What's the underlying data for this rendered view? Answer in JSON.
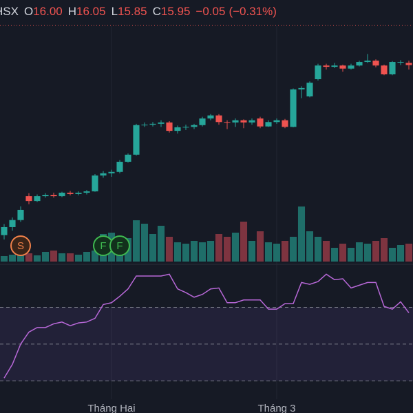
{
  "header": {
    "symbol": "HSX",
    "fields": [
      {
        "key": "O",
        "value": "16.00"
      },
      {
        "key": "H",
        "value": "16.05"
      },
      {
        "key": "L",
        "value": "15.85"
      },
      {
        "key": "C",
        "value": "15.95"
      }
    ],
    "change": "−0.05",
    "change_pct": "(−0.31%)"
  },
  "chart_data": {
    "type": "candlestick",
    "categories": [
      null,
      null,
      null,
      null,
      null,
      null,
      null,
      null,
      null,
      null,
      null,
      null,
      null,
      "Tháng Hai",
      null,
      null,
      null,
      null,
      null,
      null,
      null,
      null,
      null,
      null,
      null,
      null,
      null,
      null,
      null,
      null,
      null,
      null,
      null,
      "Tháng 3",
      null,
      null,
      null,
      null,
      null,
      null,
      null,
      null,
      null,
      null,
      null,
      null,
      null,
      null,
      null,
      null
    ],
    "events": [
      null,
      null,
      "S",
      null,
      null,
      null,
      null,
      null,
      null,
      null,
      null,
      null,
      "F",
      null,
      "F",
      null,
      null,
      null,
      null,
      null,
      null,
      null,
      null,
      null,
      null,
      null,
      null,
      null,
      null,
      null,
      null,
      null,
      null,
      null,
      null,
      null,
      null,
      null,
      null,
      null,
      null,
      null,
      null,
      null,
      null,
      null,
      null,
      null,
      null,
      null
    ],
    "open": [
      12.1,
      12.28,
      12.44,
      12.98,
      12.87,
      12.98,
      13.01,
      12.98,
      13.06,
      13.03,
      13.06,
      13.09,
      13.45,
      13.5,
      13.53,
      13.76,
      13.92,
      14.59,
      14.6,
      14.62,
      14.65,
      14.46,
      14.54,
      14.55,
      14.59,
      14.74,
      14.81,
      14.66,
      14.65,
      14.7,
      14.65,
      14.74,
      14.56,
      14.66,
      14.7,
      14.55,
      15.4,
      15.24,
      15.63,
      15.94,
      15.91,
      15.94,
      15.87,
      15.94,
      16.02,
      16.05,
      15.94,
      15.74,
      16.02,
      16.0
    ],
    "high": [
      12.35,
      12.5,
      12.75,
      13.05,
      13.02,
      13.05,
      13.06,
      13.08,
      13.1,
      13.09,
      13.12,
      13.48,
      13.55,
      13.58,
      13.8,
      13.95,
      14.62,
      14.65,
      14.66,
      14.7,
      14.68,
      14.58,
      14.6,
      14.62,
      14.78,
      14.84,
      14.84,
      14.7,
      14.74,
      14.72,
      14.74,
      14.78,
      14.7,
      14.74,
      14.73,
      15.42,
      15.47,
      15.58,
      15.98,
      15.98,
      16.0,
      15.96,
      15.98,
      16.05,
      16.2,
      16.08,
      15.96,
      16.04,
      16.06,
      16.05
    ],
    "low": [
      12.0,
      12.2,
      12.4,
      12.8,
      12.85,
      12.95,
      12.95,
      12.96,
      13.0,
      13.0,
      13.02,
      13.08,
      13.4,
      13.42,
      13.5,
      13.74,
      13.9,
      14.55,
      14.56,
      14.55,
      14.42,
      14.4,
      14.48,
      14.5,
      14.56,
      14.7,
      14.6,
      14.5,
      14.55,
      14.52,
      14.6,
      14.52,
      14.55,
      14.62,
      14.52,
      14.54,
      15.2,
      15.22,
      15.6,
      15.85,
      15.88,
      15.8,
      15.85,
      15.92,
      16.0,
      15.9,
      15.72,
      15.72,
      15.95,
      15.85
    ],
    "close": [
      12.28,
      12.44,
      12.67,
      12.87,
      12.98,
      13.01,
      12.98,
      13.06,
      13.03,
      13.06,
      13.09,
      13.45,
      13.5,
      13.53,
      13.76,
      13.92,
      14.59,
      14.6,
      14.62,
      14.65,
      14.46,
      14.54,
      14.55,
      14.59,
      14.74,
      14.81,
      14.66,
      14.65,
      14.7,
      14.65,
      14.7,
      14.56,
      14.66,
      14.7,
      14.55,
      15.4,
      15.43,
      15.55,
      15.94,
      15.91,
      15.94,
      15.87,
      15.94,
      16.02,
      16.05,
      15.94,
      15.74,
      16.02,
      16.02,
      15.95
    ],
    "volume": [
      8,
      10,
      14,
      12,
      9,
      14,
      16,
      12,
      12,
      10,
      14,
      16,
      40,
      42,
      28,
      34,
      60,
      55,
      40,
      52,
      36,
      28,
      26,
      30,
      28,
      30,
      40,
      36,
      42,
      58,
      30,
      44,
      28,
      26,
      30,
      36,
      80,
      44,
      36,
      30,
      20,
      26,
      20,
      28,
      26,
      30,
      34,
      20,
      24,
      26
    ],
    "rsi": [
      31.5,
      39,
      50,
      56.5,
      59,
      59,
      61,
      62,
      60,
      61.5,
      62,
      64,
      71.5,
      72.5,
      76,
      80,
      87,
      87,
      87,
      87,
      88,
      80,
      78,
      75.5,
      77,
      80,
      80.5,
      72.5,
      72.5,
      74,
      74,
      74,
      69,
      69,
      72,
      72,
      83.5,
      82.5,
      84,
      88,
      85,
      85.5,
      80.5,
      82,
      83.5,
      83.5,
      70.5,
      69,
      73,
      67
    ],
    "ylim": [
      11.5,
      16.8
    ],
    "volume_lim": [
      0,
      100
    ],
    "rsi_lim": [
      20,
      93
    ],
    "rsi_levels": [
      70,
      50,
      30
    ],
    "up_color": "#26a69a",
    "down_color": "#ef5350",
    "up_volume_color": "#1f6e69",
    "down_volume_color": "#7e3440",
    "rsi_color": "#b868d8"
  }
}
